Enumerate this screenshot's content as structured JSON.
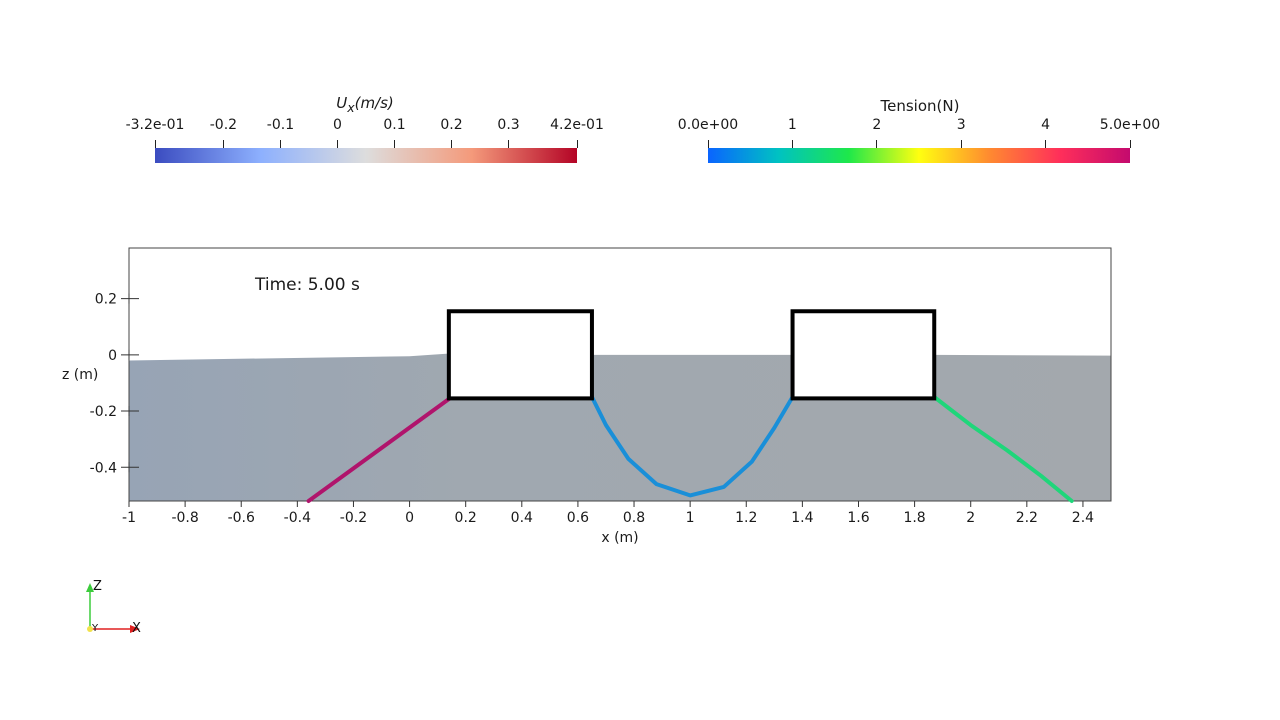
{
  "colorbars": {
    "ux": {
      "title": "U",
      "title_sub": "x",
      "title_units": "(m/s)",
      "ticks": [
        "-3.2e-01",
        "-0.2",
        "-0.1",
        "0",
        "0.1",
        "0.2",
        "0.3",
        "4.2e-01"
      ],
      "tick_values": [
        -0.32,
        -0.2,
        -0.1,
        0,
        0.1,
        0.2,
        0.3,
        0.42
      ],
      "range": [
        -0.32,
        0.42
      ],
      "colors": [
        "#3b4cc0",
        "#8db0fe",
        "#dddddd",
        "#f49a7b",
        "#b40426"
      ]
    },
    "tension": {
      "title": "Tension(N)",
      "ticks": [
        "0.0e+00",
        "1",
        "2",
        "3",
        "4",
        "5.0e+00"
      ],
      "tick_values": [
        0,
        1,
        2,
        3,
        4,
        5
      ],
      "range": [
        0,
        5
      ],
      "colors": [
        "#0a64ff",
        "#00c2c2",
        "#1ee84a",
        "#ffff10",
        "#ff8a30",
        "#ff2f5a",
        "#c40a6e"
      ]
    }
  },
  "plot": {
    "time_label": "Time: 5.00 s",
    "xlabel": "x (m)",
    "ylabel": "z (m)",
    "xlim": [
      -1,
      2.5
    ],
    "ylim": [
      -0.52,
      0.38
    ],
    "xticks": [
      "-1",
      "-0.8",
      "-0.6",
      "-0.4",
      "-0.2",
      "0",
      "0.2",
      "0.4",
      "0.6",
      "0.8",
      "1",
      "1.2",
      "1.4",
      "1.6",
      "1.8",
      "2",
      "2.2",
      "2.4"
    ],
    "xtick_values": [
      -1,
      -0.8,
      -0.6,
      -0.4,
      -0.2,
      0,
      0.2,
      0.4,
      0.6,
      0.8,
      1,
      1.2,
      1.4,
      1.6,
      1.8,
      2,
      2.2,
      2.4
    ],
    "yticks": [
      "0.2",
      "0",
      "-0.2",
      "-0.4"
    ],
    "ytick_values": [
      0.2,
      0,
      -0.2,
      -0.4
    ],
    "free_surface": [
      [
        -1,
        -0.02
      ],
      [
        0,
        -0.005
      ],
      [
        0.15,
        0.005
      ],
      [
        0.65,
        0.0
      ],
      [
        1.35,
        0.0
      ],
      [
        1.87,
        0.0
      ],
      [
        2.5,
        -0.003
      ]
    ],
    "water_color": "#a4a9ad",
    "floaters": [
      {
        "name": "left",
        "x0": 0.14,
        "x1": 0.65,
        "z_top": 0.155,
        "z_bottom": -0.155
      },
      {
        "name": "right",
        "x0": 1.365,
        "x1": 1.87,
        "z_top": 0.155,
        "z_bottom": -0.155
      }
    ],
    "mooring_lines": [
      {
        "name": "anchor-left",
        "tension": 4.8,
        "color": "#b0146c",
        "points": [
          [
            0.15,
            -0.15
          ],
          [
            -0.36,
            -0.52
          ]
        ]
      },
      {
        "name": "connector",
        "tension": 0.5,
        "color": "#1a8fd8",
        "points": [
          [
            0.65,
            -0.15
          ],
          [
            0.7,
            -0.25
          ],
          [
            0.78,
            -0.37
          ],
          [
            0.88,
            -0.46
          ],
          [
            1.0,
            -0.5
          ],
          [
            1.12,
            -0.47
          ],
          [
            1.22,
            -0.38
          ],
          [
            1.3,
            -0.26
          ],
          [
            1.365,
            -0.15
          ]
        ]
      },
      {
        "name": "anchor-right",
        "tension": 1.8,
        "color": "#1fd67a",
        "points": [
          [
            1.87,
            -0.15
          ],
          [
            2.0,
            -0.25
          ],
          [
            2.13,
            -0.34
          ],
          [
            2.25,
            -0.43
          ],
          [
            2.36,
            -0.52
          ]
        ]
      }
    ]
  },
  "triad": {
    "z_label": "Z",
    "x_label": "X",
    "y_label": "Y"
  }
}
